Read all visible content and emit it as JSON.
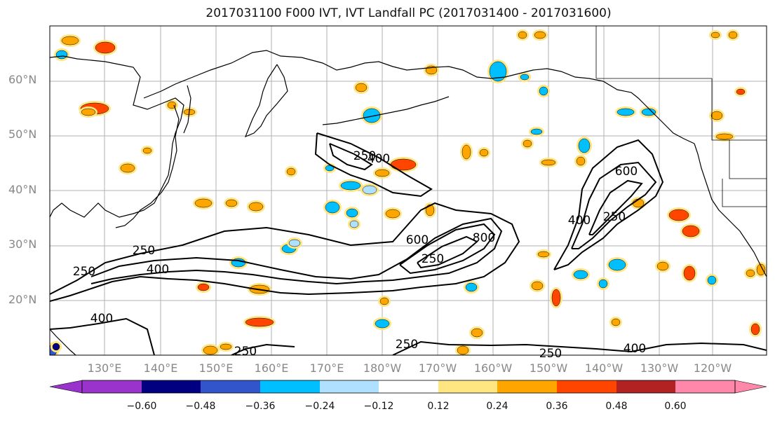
{
  "title": "2017031100 F000 IVT, IVT Landfall PC (2017031400 - 2017031600)",
  "lat_labels": [
    "60°N",
    "50°N",
    "40°N",
    "30°N",
    "20°N"
  ],
  "lon_labels": [
    "130°E",
    "140°E",
    "150°E",
    "160°E",
    "170°E",
    "180°W",
    "170°W",
    "160°W",
    "150°W",
    "140°W",
    "130°W",
    "120°W"
  ],
  "contour_labels": [
    "250",
    "400",
    "250",
    "400",
    "250",
    "250",
    "400",
    "600",
    "800",
    "250",
    "400",
    "600",
    "250",
    "250",
    "250",
    "400"
  ],
  "colorbar": {
    "ticks": [
      "−0.60",
      "−0.48",
      "−0.36",
      "−0.24",
      "−0.12",
      "0.12",
      "0.24",
      "0.36",
      "0.48",
      "0.60"
    ],
    "colors": [
      "#9933cc",
      "#000080",
      "#3355cc",
      "#00bfff",
      "#b0e0ff",
      "#ffffff",
      "#ffe680",
      "#ffa500",
      "#ff4500",
      "#b22222",
      "#ff88aa"
    ]
  },
  "colors": {
    "grid": "#b0b0b0",
    "coast": "#000000",
    "contour": "#000000"
  }
}
